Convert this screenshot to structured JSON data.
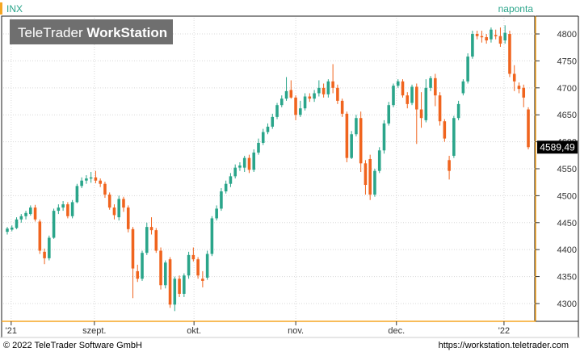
{
  "header": {
    "symbol": "INX",
    "watermark_regular": "TeleTrader ",
    "watermark_bold": "WorkStation",
    "period": "naponta"
  },
  "footer": {
    "copyright": "© 2022 TeleTrader Software GmbH",
    "url": "https://workstation.teletrader.com"
  },
  "colors": {
    "up": "#2aa58a",
    "down": "#f0641e",
    "accent": "#f5a623",
    "frame": "#1a1a1a",
    "grid": "#d8d8d8",
    "last_price_bg": "#000000"
  },
  "chart_data": {
    "type": "candlestick",
    "x_tick_labels": [
      "'21",
      "szept.",
      "okt.",
      "nov.",
      "dec.",
      "'22"
    ],
    "y_ticks": [
      4300,
      4350,
      4400,
      4450,
      4500,
      4550,
      4600,
      4650,
      4700,
      4750,
      4800
    ],
    "ylim": [
      4270,
      4830
    ],
    "last_price": "4589,49",
    "grid": true,
    "candles": [
      [
        4433,
        4439,
        4428,
        4442
      ],
      [
        4437,
        4441,
        4434,
        4445
      ],
      [
        4440,
        4456,
        4438,
        4460
      ],
      [
        4456,
        4462,
        4450,
        4466
      ],
      [
        4462,
        4468,
        4456,
        4472
      ],
      [
        4466,
        4478,
        4463,
        4482
      ],
      [
        4478,
        4456,
        4452,
        4483
      ],
      [
        4452,
        4398,
        4392,
        4456
      ],
      [
        4396,
        4384,
        4373,
        4402
      ],
      [
        4384,
        4422,
        4380,
        4426
      ],
      [
        4422,
        4472,
        4420,
        4476
      ],
      [
        4472,
        4478,
        4466,
        4484
      ],
      [
        4478,
        4484,
        4472,
        4490
      ],
      [
        4484,
        4462,
        4458,
        4488
      ],
      [
        4462,
        4488,
        4458,
        4492
      ],
      [
        4488,
        4518,
        4486,
        4522
      ],
      [
        4518,
        4528,
        4514,
        4534
      ],
      [
        4528,
        4532,
        4522,
        4538
      ],
      [
        4532,
        4534,
        4524,
        4544
      ],
      [
        4534,
        4528,
        4523,
        4546
      ],
      [
        4528,
        4522,
        4516,
        4532
      ],
      [
        4522,
        4502,
        4496,
        4526
      ],
      [
        4502,
        4478,
        4474,
        4506
      ],
      [
        4478,
        4464,
        4456,
        4484
      ],
      [
        4460,
        4494,
        4454,
        4500
      ],
      [
        4494,
        4478,
        4470,
        4498
      ],
      [
        4478,
        4438,
        4432,
        4482
      ],
      [
        4438,
        4365,
        4310,
        4442
      ],
      [
        4360,
        4346,
        4340,
        4372
      ],
      [
        4346,
        4394,
        4342,
        4398
      ],
      [
        4394,
        4442,
        4390,
        4450
      ],
      [
        4442,
        4436,
        4428,
        4460
      ],
      [
        4436,
        4398,
        4394,
        4440
      ],
      [
        4398,
        4334,
        4326,
        4404
      ],
      [
        4334,
        4376,
        4328,
        4380
      ],
      [
        4382,
        4298,
        4292,
        4386
      ],
      [
        4298,
        4346,
        4286,
        4350
      ],
      [
        4346,
        4318,
        4312,
        4352
      ],
      [
        4318,
        4352,
        4312,
        4356
      ],
      [
        4352,
        4390,
        4346,
        4396
      ],
      [
        4390,
        4382,
        4378,
        4404
      ],
      [
        4382,
        4352,
        4346,
        4386
      ],
      [
        4346,
        4342,
        4330,
        4360
      ],
      [
        4348,
        4392,
        4344,
        4398
      ],
      [
        4392,
        4458,
        4388,
        4462
      ],
      [
        4458,
        4476,
        4454,
        4482
      ],
      [
        4476,
        4508,
        4472,
        4514
      ],
      [
        4508,
        4522,
        4504,
        4528
      ],
      [
        4522,
        4536,
        4516,
        4542
      ],
      [
        4536,
        4552,
        4532,
        4558
      ],
      [
        4552,
        4556,
        4546,
        4562
      ],
      [
        4552,
        4570,
        4544,
        4574
      ],
      [
        4570,
        4548,
        4542,
        4576
      ],
      [
        4548,
        4580,
        4544,
        4586
      ],
      [
        4580,
        4598,
        4576,
        4606
      ],
      [
        4598,
        4618,
        4594,
        4624
      ],
      [
        4618,
        4628,
        4614,
        4634
      ],
      [
        4628,
        4646,
        4624,
        4652
      ],
      [
        4646,
        4668,
        4642,
        4672
      ],
      [
        4668,
        4680,
        4664,
        4686
      ],
      [
        4680,
        4694,
        4676,
        4720
      ],
      [
        4696,
        4682,
        4680,
        4714
      ],
      [
        4682,
        4650,
        4640,
        4686
      ],
      [
        4650,
        4662,
        4646,
        4676
      ],
      [
        4662,
        4684,
        4658,
        4690
      ],
      [
        4684,
        4680,
        4674,
        4690
      ],
      [
        4680,
        4690,
        4674,
        4696
      ],
      [
        4690,
        4700,
        4684,
        4714
      ],
      [
        4700,
        4688,
        4682,
        4708
      ],
      [
        4688,
        4712,
        4682,
        4716
      ],
      [
        4712,
        4700,
        4690,
        4744
      ],
      [
        4700,
        4676,
        4670,
        4706
      ],
      [
        4676,
        4652,
        4646,
        4680
      ],
      [
        4652,
        4570,
        4562,
        4656
      ],
      [
        4570,
        4614,
        4568,
        4620
      ],
      [
        4614,
        4644,
        4610,
        4650
      ],
      [
        4644,
        4560,
        4544,
        4656
      ],
      [
        4560,
        4520,
        4502,
        4566
      ],
      [
        4568,
        4502,
        4492,
        4576
      ],
      [
        4502,
        4546,
        4498,
        4550
      ],
      [
        4546,
        4584,
        4542,
        4590
      ],
      [
        4584,
        4634,
        4578,
        4640
      ],
      [
        4634,
        4668,
        4630,
        4674
      ],
      [
        4668,
        4704,
        4664,
        4708
      ],
      [
        4704,
        4712,
        4700,
        4716
      ],
      [
        4712,
        4686,
        4682,
        4716
      ],
      [
        4686,
        4670,
        4662,
        4692
      ],
      [
        4672,
        4702,
        4668,
        4706
      ],
      [
        4702,
        4660,
        4596,
        4708
      ],
      [
        4660,
        4644,
        4626,
        4692
      ],
      [
        4640,
        4700,
        4636,
        4716
      ],
      [
        4700,
        4718,
        4694,
        4722
      ],
      [
        4718,
        4686,
        4666,
        4726
      ],
      [
        4686,
        4638,
        4630,
        4692
      ],
      [
        4638,
        4606,
        4600,
        4642
      ],
      [
        4566,
        4546,
        4530,
        4574
      ],
      [
        4574,
        4644,
        4570,
        4648
      ],
      [
        4644,
        4670,
        4640,
        4676
      ],
      [
        4690,
        4712,
        4686,
        4716
      ],
      [
        4712,
        4758,
        4708,
        4764
      ],
      [
        4758,
        4800,
        4754,
        4806
      ],
      [
        4800,
        4796,
        4790,
        4806
      ],
      [
        4796,
        4794,
        4784,
        4806
      ],
      [
        4794,
        4788,
        4782,
        4800
      ],
      [
        4790,
        4808,
        4784,
        4812
      ],
      [
        4798,
        4796,
        4790,
        4808
      ],
      [
        4796,
        4782,
        4776,
        4812
      ],
      [
        4788,
        4802,
        4782,
        4816
      ],
      [
        4800,
        4726,
        4720,
        4806
      ],
      [
        4726,
        4712,
        4694,
        4742
      ],
      [
        4704,
        4698,
        4690,
        4710
      ],
      [
        4700,
        4682,
        4664,
        4706
      ],
      [
        4660,
        4590,
        4586,
        4664
      ]
    ]
  }
}
